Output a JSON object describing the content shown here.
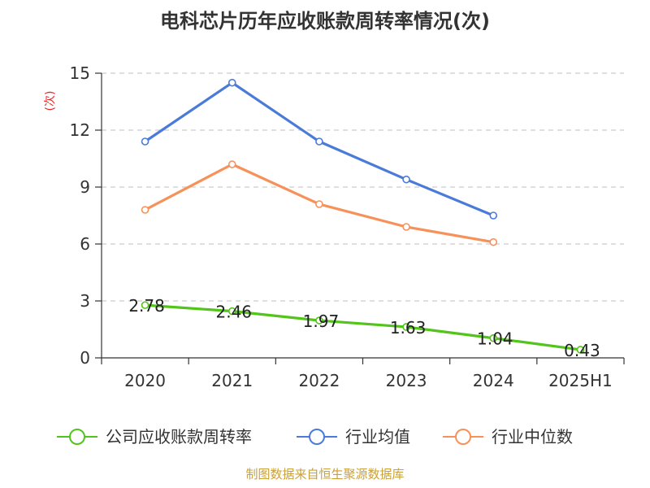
{
  "chart_data": {
    "type": "line",
    "title": "电科芯片历年应收账款周转率情况(次)",
    "ylabel": "(次)",
    "categories": [
      "2020",
      "2021",
      "2022",
      "2023",
      "2024",
      "2025H1"
    ],
    "ylim": [
      0,
      15
    ],
    "yticks": [
      0,
      3,
      6,
      9,
      12,
      15
    ],
    "grid": true,
    "legend_position": "bottom",
    "series": [
      {
        "name": "公司应收账款周转率",
        "color": "#52c41a",
        "values": [
          2.78,
          2.46,
          1.97,
          1.63,
          1.04,
          0.43
        ],
        "labels": [
          "2.78",
          "2.46",
          "1.97",
          "1.63",
          "1.04",
          "0.43"
        ]
      },
      {
        "name": "行业均值",
        "color": "#4a7bd9",
        "values": [
          11.4,
          14.5,
          11.4,
          9.4,
          7.5,
          null
        ]
      },
      {
        "name": "行业中位数",
        "color": "#f7915a",
        "values": [
          7.8,
          10.2,
          8.1,
          6.9,
          6.1,
          null
        ]
      }
    ],
    "source": "制图数据来自恒生聚源数据库"
  }
}
